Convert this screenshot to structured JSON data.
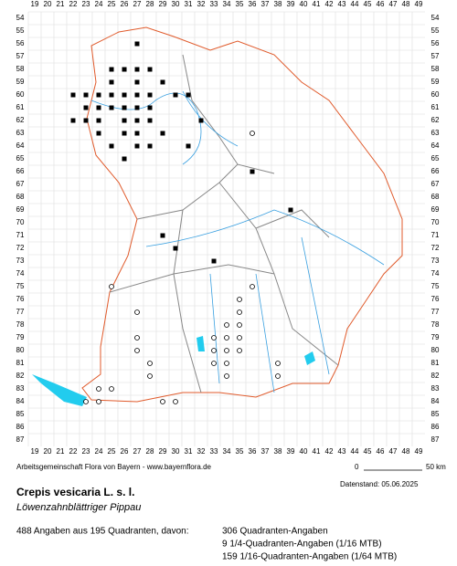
{
  "grid": {
    "columns": [
      19,
      20,
      21,
      22,
      23,
      24,
      25,
      26,
      27,
      28,
      29,
      30,
      31,
      32,
      33,
      34,
      35,
      36,
      37,
      38,
      39,
      40,
      41,
      42,
      43,
      44,
      45,
      46,
      47,
      48,
      49
    ],
    "rows": [
      54,
      55,
      56,
      57,
      58,
      59,
      60,
      61,
      62,
      63,
      64,
      65,
      66,
      67,
      68,
      69,
      70,
      71,
      72,
      73,
      74,
      75,
      76,
      77,
      78,
      79,
      80,
      81,
      82,
      83,
      84,
      85,
      86,
      87
    ]
  },
  "footer": {
    "credit": "Arbeitsgemeinschaft Flora von Bayern - www.bayernflora.de",
    "scale_start": "0",
    "scale_end": "50 km",
    "date": "Datenstand: 05.06.2025"
  },
  "species": {
    "name": "Crepis vesicaria L. s. l.",
    "common_name": "Löwenzahnblättriger Pippau"
  },
  "summary": "488 Angaben aus 195 Quadranten, davon:",
  "breakdown": [
    "306 Quadranten-Angaben",
    "9 1/4-Quadranten-Angaben (1/16 MTB)",
    "159 1/16-Quadranten-Angaben (1/64 MTB)"
  ]
}
